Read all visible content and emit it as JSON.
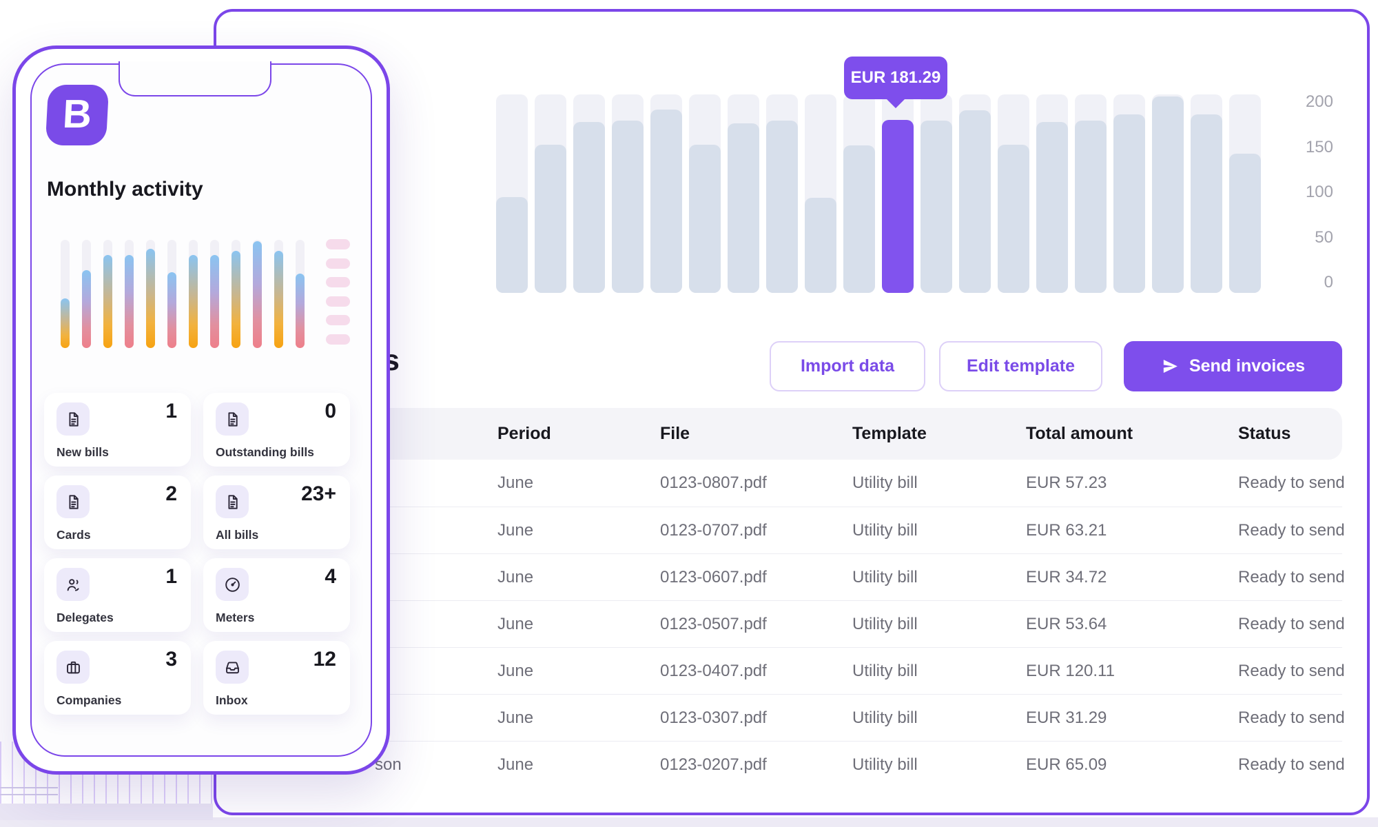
{
  "brand": {
    "logo_letter": "B",
    "accent_color": "#7b46e9"
  },
  "phone": {
    "title": "Monthly activity",
    "mini_chart": {
      "type": "bar",
      "values_pct": [
        46,
        72,
        86,
        86,
        92,
        70,
        86,
        86,
        90,
        99,
        90,
        69
      ],
      "gradient_top": "#8ac4f1",
      "gradient_end_orange": "#f7a312",
      "gradient_end_pink": "#ee7f8a"
    },
    "pills_count": 6,
    "cards": [
      {
        "label": "New bills",
        "value": "1",
        "icon": "document-icon"
      },
      {
        "label": "Outstanding bills",
        "value": "0",
        "icon": "document-icon"
      },
      {
        "label": "Cards",
        "value": "2",
        "icon": "document-icon"
      },
      {
        "label": "All bills",
        "value": "23+",
        "icon": "document-icon"
      },
      {
        "label": "Delegates",
        "value": "1",
        "icon": "delegate-icon"
      },
      {
        "label": "Meters",
        "value": "4",
        "icon": "meter-icon"
      },
      {
        "label": "Companies",
        "value": "3",
        "icon": "briefcase-icon"
      },
      {
        "label": "Inbox",
        "value": "12",
        "icon": "inbox-icon"
      }
    ]
  },
  "main": {
    "heading_fragment": "s",
    "chart_data": {
      "type": "bar",
      "values": [
        96,
        154,
        179,
        181,
        193,
        154,
        178,
        181,
        95,
        153,
        181.29,
        181,
        192,
        154,
        179,
        181,
        188,
        208,
        188,
        144
      ],
      "highlight_index": 10,
      "tooltip": "EUR 181.29",
      "yticks": [
        0,
        50,
        100,
        150,
        200
      ],
      "ylim": [
        0,
        210
      ],
      "xlabel": "",
      "ylabel": "",
      "grid": false,
      "legend": false,
      "track_color": "#f0f1f7",
      "bar_color": "#d7dfeb",
      "highlight_color": "#8153ee"
    },
    "buttons": [
      {
        "label": "Import data",
        "style": "outline"
      },
      {
        "label": "Edit template",
        "style": "outline"
      },
      {
        "label": "Send invoices",
        "style": "solid",
        "icon": "send-icon"
      }
    ],
    "table": {
      "columns": [
        "Period",
        "File",
        "Template",
        "Total amount",
        "Status"
      ],
      "name_fragment": "son",
      "rows": [
        {
          "period": "June",
          "file": "0123-0807.pdf",
          "template": "Utility bill",
          "total": "EUR 57.23",
          "status": "Ready to send"
        },
        {
          "period": "June",
          "file": "0123-0707.pdf",
          "template": "Utility bill",
          "total": "EUR 63.21",
          "status": "Ready to send"
        },
        {
          "period": "June",
          "file": "0123-0607.pdf",
          "template": "Utility bill",
          "total": "EUR 34.72",
          "status": "Ready to send"
        },
        {
          "period": "June",
          "file": "0123-0507.pdf",
          "template": "Utility bill",
          "total": "EUR 53.64",
          "status": "Ready to send"
        },
        {
          "period": "June",
          "file": "0123-0407.pdf",
          "template": "Utility bill",
          "total": "EUR 120.11",
          "status": "Ready to send"
        },
        {
          "period": "June",
          "file": "0123-0307.pdf",
          "template": "Utility bill",
          "total": "EUR 31.29",
          "status": "Ready to send"
        },
        {
          "period": "June",
          "file": "0123-0207.pdf",
          "template": "Utility bill",
          "total": "EUR 65.09",
          "status": "Ready to send"
        }
      ]
    }
  }
}
